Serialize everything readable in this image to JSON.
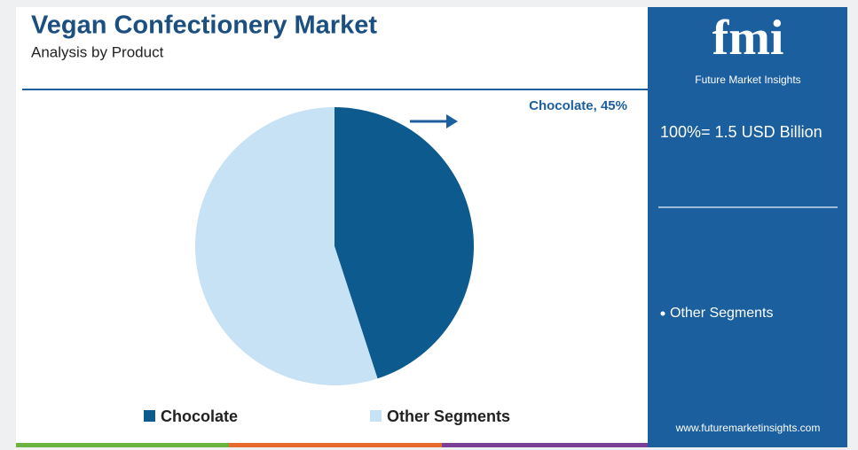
{
  "chart_data": {
    "type": "pie",
    "title": "Vegan Confectionery Market",
    "subtitle": "Analysis by Product",
    "categories": [
      "Chocolate",
      "Other Segments"
    ],
    "values": [
      45,
      55
    ],
    "value_labels": [
      "Chocolate, 45%",
      null
    ],
    "colors": [
      "#0d5a8f",
      "#c6e2f4"
    ],
    "legend": "bottom"
  },
  "sidebar": {
    "logo": "fmi",
    "logo_subtitle": "Future Market Insights",
    "total": "100%= 1.5 USD Billion",
    "note": "Other Segments",
    "website": "www.futuremarketinsights.com"
  }
}
